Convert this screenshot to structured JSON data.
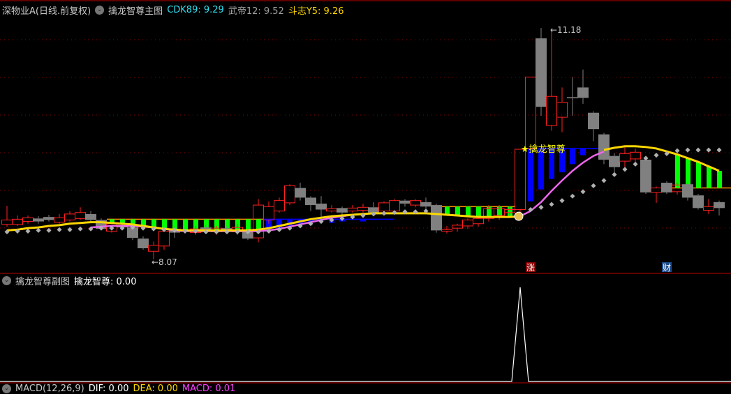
{
  "header": {
    "stock": "深物业A(日线.前复权)",
    "indicator": "擒龙智尊主图",
    "cdk_label": "CDK89: 9.29",
    "wudi_label": "武帝12: 9.52",
    "douzhi_label": "斗志Y5: 9.26"
  },
  "sub_header": {
    "title": "擒龙智尊副图",
    "value_label": "擒龙智尊: 0.00"
  },
  "macd_header": {
    "title": "MACD(12,26,9)",
    "dif": "DIF: 0.00",
    "dea": "DEA: 0.00",
    "macd": "MACD: 0.01"
  },
  "annotations": {
    "high": "11.18",
    "low": "8.07",
    "signal": "擒龙智尊",
    "badge_zhang": "涨",
    "badge_cai": "财"
  },
  "colors": {
    "up": "#ff2020",
    "down": "#808080",
    "yellow_line": "#ffd700",
    "pink_line": "#ee66ee",
    "dots": "#b0b0b0",
    "blue_bar": "#0000ff",
    "green_bar": "#00ff00",
    "level_line": "#ff8c00",
    "grid": "#8b0000",
    "divider": "#c00000"
  },
  "chart_data": [
    {
      "type": "candlestick",
      "grid": true,
      "high_label": 11.18,
      "low_label": 8.07,
      "candles": [
        [
          8.54,
          8.6,
          8.79,
          8.51
        ],
        [
          8.54,
          8.61,
          8.66,
          8.52
        ],
        [
          8.58,
          8.63,
          8.66,
          8.55
        ],
        [
          8.62,
          8.58,
          8.65,
          8.55
        ],
        [
          8.64,
          8.6,
          8.67,
          8.58
        ],
        [
          8.57,
          8.63,
          8.68,
          8.55
        ],
        [
          8.6,
          8.68,
          8.72,
          8.58
        ],
        [
          8.62,
          8.7,
          8.77,
          8.6
        ],
        [
          8.68,
          8.6,
          8.72,
          8.58
        ],
        [
          8.6,
          8.48,
          8.62,
          8.46
        ],
        [
          8.45,
          8.55,
          8.57,
          8.43
        ],
        [
          8.52,
          8.5,
          8.55,
          8.48
        ],
        [
          8.5,
          8.36,
          8.52,
          8.33
        ],
        [
          8.35,
          8.22,
          8.38,
          8.2
        ],
        [
          8.18,
          8.26,
          8.31,
          8.07
        ],
        [
          8.25,
          8.45,
          8.48,
          8.2
        ],
        [
          8.48,
          8.43,
          8.5,
          8.36
        ],
        [
          8.47,
          8.44,
          8.49,
          8.42
        ],
        [
          8.43,
          8.48,
          8.52,
          8.4
        ],
        [
          8.5,
          8.45,
          8.53,
          8.42
        ],
        [
          8.44,
          8.49,
          8.52,
          8.4
        ],
        [
          8.49,
          8.46,
          8.52,
          8.43
        ],
        [
          8.44,
          8.5,
          8.55,
          8.4
        ],
        [
          8.46,
          8.35,
          8.48,
          8.33
        ],
        [
          8.36,
          8.8,
          8.88,
          8.3
        ],
        [
          8.6,
          8.78,
          8.85,
          8.55
        ],
        [
          8.72,
          8.86,
          8.9,
          8.7
        ],
        [
          8.83,
          9.06,
          9.08,
          8.8
        ],
        [
          9.03,
          8.9,
          9.1,
          8.86
        ],
        [
          8.9,
          8.8,
          8.92,
          8.72
        ],
        [
          8.82,
          8.74,
          8.92,
          8.6
        ],
        [
          8.72,
          8.75,
          8.8,
          8.7
        ],
        [
          8.76,
          8.7,
          8.78,
          8.66
        ],
        [
          8.72,
          8.76,
          8.8,
          8.7
        ],
        [
          8.73,
          8.77,
          8.82,
          8.7
        ],
        [
          8.77,
          8.7,
          8.84,
          8.68
        ],
        [
          8.72,
          8.83,
          8.85,
          8.7
        ],
        [
          8.72,
          8.86,
          8.88,
          8.7
        ],
        [
          8.86,
          8.82,
          8.88,
          8.78
        ],
        [
          8.8,
          8.86,
          8.88,
          8.77
        ],
        [
          8.84,
          8.78,
          8.9,
          8.75
        ],
        [
          8.8,
          8.46,
          8.82,
          8.43
        ],
        [
          8.45,
          8.47,
          8.52,
          8.42
        ],
        [
          8.49,
          8.53,
          8.55,
          8.44
        ],
        [
          8.52,
          8.6,
          8.62,
          8.48
        ],
        [
          8.55,
          8.62,
          8.66,
          8.51
        ],
        [
          8.62,
          8.75,
          8.8,
          8.58
        ],
        [
          8.66,
          8.75,
          8.8,
          8.6
        ],
        [
          8.7,
          8.74,
          8.78,
          8.66
        ],
        [
          8.74,
          9.55,
          9.55,
          8.68
        ],
        [
          9.56,
          10.52,
          10.52,
          9.55
        ],
        [
          11.04,
          10.12,
          11.18,
          10.0
        ],
        [
          9.87,
          10.26,
          11.16,
          9.8
        ],
        [
          9.98,
          10.18,
          10.38,
          9.78
        ],
        [
          10.25,
          10.24,
          10.52,
          10.0
        ],
        [
          10.38,
          10.24,
          10.62,
          10.16
        ],
        [
          10.04,
          9.82,
          10.06,
          9.66
        ],
        [
          9.75,
          9.41,
          9.77,
          9.35
        ],
        [
          9.46,
          9.31,
          9.5,
          9.24
        ],
        [
          9.39,
          9.49,
          9.58,
          9.31
        ],
        [
          9.42,
          9.51,
          9.56,
          9.38
        ],
        [
          9.41,
          8.97,
          9.43,
          8.95
        ],
        [
          8.97,
          9.03,
          9.05,
          8.83
        ],
        [
          9.1,
          8.97,
          9.12,
          8.95
        ],
        [
          8.98,
          9.07,
          9.1,
          8.94
        ],
        [
          9.08,
          8.9,
          9.1,
          8.86
        ],
        [
          8.93,
          8.76,
          8.95,
          8.74
        ],
        [
          8.73,
          8.78,
          8.88,
          8.68
        ],
        [
          8.84,
          8.76,
          8.86,
          8.66
        ]
      ],
      "yellow_line": [
        8.46,
        8.47,
        8.49,
        8.5,
        8.52,
        8.53,
        8.55,
        8.56,
        8.57,
        8.57,
        8.56,
        8.55,
        8.54,
        8.52,
        8.5,
        8.48,
        8.47,
        8.46,
        8.46,
        8.46,
        8.46,
        8.46,
        8.46,
        8.46,
        8.47,
        8.49,
        8.52,
        8.55,
        8.58,
        8.61,
        8.63,
        8.65,
        8.66,
        8.67,
        8.68,
        8.69,
        8.69,
        8.69,
        8.69,
        8.69,
        8.69,
        8.68,
        8.67,
        8.66,
        8.65,
        8.64,
        8.64,
        8.64,
        8.64,
        8.65,
        null,
        null,
        null,
        null,
        null,
        null,
        null,
        9.54,
        9.57,
        9.59,
        9.59,
        9.58,
        9.56,
        9.52,
        9.48,
        9.43,
        9.38,
        9.32,
        9.26
      ],
      "pink_line": [
        null,
        null,
        null,
        null,
        null,
        null,
        null,
        null,
        8.5,
        8.51,
        8.52,
        8.52,
        8.52,
        8.51,
        8.5,
        8.48,
        8.46,
        8.45,
        8.45,
        8.45,
        8.45,
        8.45,
        8.45,
        8.45,
        8.45,
        8.46,
        8.48,
        8.51,
        8.54,
        8.57,
        8.6,
        8.63,
        8.65,
        8.67,
        8.68,
        null,
        null,
        null,
        null,
        null,
        null,
        null,
        null,
        null,
        null,
        null,
        null,
        null,
        null,
        8.65,
        8.72,
        8.84,
        8.99,
        9.13,
        9.26,
        9.37,
        9.46,
        9.52,
        null,
        null,
        null,
        null,
        null,
        null,
        null,
        null,
        null,
        null,
        null
      ],
      "dots": [
        8.44,
        8.45,
        8.45,
        8.46,
        8.46,
        8.47,
        8.47,
        8.48,
        8.48,
        8.49,
        8.49,
        8.49,
        8.5,
        8.49,
        8.48,
        8.47,
        8.46,
        8.45,
        8.45,
        8.44,
        8.44,
        8.44,
        8.44,
        8.44,
        8.44,
        8.45,
        8.47,
        8.49,
        8.52,
        8.55,
        8.58,
        8.6,
        8.62,
        8.64,
        8.66,
        8.68,
        8.69,
        8.7,
        8.71,
        8.71,
        8.72,
        null,
        null,
        null,
        null,
        null,
        null,
        null,
        null,
        null,
        8.74,
        8.77,
        8.81,
        8.86,
        8.92,
        8.98,
        9.06,
        9.13,
        9.21,
        9.28,
        9.35,
        9.43,
        9.47,
        9.49,
        9.53,
        9.54,
        9.54,
        9.54,
        9.54
      ],
      "blue_bars": {
        "level1": 8.61,
        "bars1": [
          [
            25,
            8.49
          ],
          [
            26,
            8.47
          ],
          [
            27,
            8.52
          ],
          [
            28,
            8.55
          ],
          [
            29,
            8.57
          ],
          [
            30,
            8.59
          ],
          [
            31,
            8.56
          ],
          [
            32,
            8.58
          ],
          [
            33,
            8.6
          ],
          [
            34,
            8.58
          ],
          [
            35,
            8.6
          ]
        ],
        "level2": 9.56,
        "bars2": [
          [
            50,
            8.85
          ],
          [
            51,
            9.01
          ],
          [
            52,
            9.15
          ],
          [
            53,
            9.24
          ],
          [
            54,
            9.35
          ],
          [
            55,
            9.47
          ],
          [
            56,
            9.55
          ]
        ]
      },
      "green_bars": {
        "level1": 8.61,
        "range1": [
          10,
          24
        ],
        "level2": 8.78,
        "range2": [
          42,
          48
        ],
        "level3": 9.03,
        "range3": [
          64,
          68
        ]
      },
      "signal_index": 49,
      "zhang_index": 50,
      "cai_index": 63
    },
    {
      "type": "line",
      "name": "擒龙智尊",
      "values_nonzero": [
        [
          49,
          1
        ]
      ],
      "ylim": [
        0,
        1
      ]
    }
  ]
}
